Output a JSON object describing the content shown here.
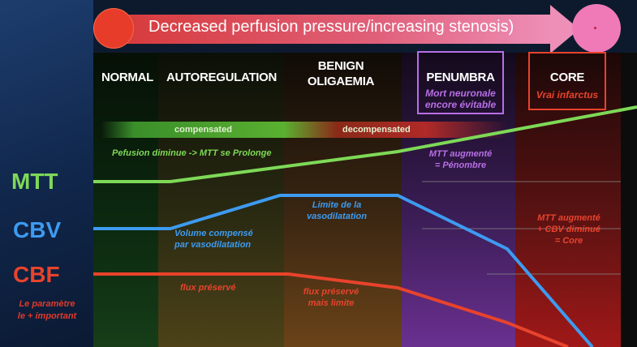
{
  "banner": {
    "text": "Decreased perfusion pressure/increasing stenosis)"
  },
  "stages": {
    "normal": "NORMAL",
    "autoregulation": "AUTOREGULATION",
    "benign_line1": "BENIGN",
    "benign_line2": "OLIGAEMIA",
    "penumbra": "PENUMBRA",
    "core": "CORE"
  },
  "boxes": {
    "penumbra_sub_line1": "Mort neuronale",
    "penumbra_sub_line2": "encore évitable",
    "core_sub": "Vrai infarctus"
  },
  "compensation": {
    "compensated": "compensated",
    "decompensated": "decompensated"
  },
  "legend": {
    "mtt": "MTT",
    "cbv": "CBV",
    "cbf": "CBF",
    "note_line1": "Le paramètre",
    "note_line2": "le + important"
  },
  "annotations": {
    "perfusion": "Pefusion diminue -> MTT se Prolonge",
    "mtt_pen_line1": "MTT augmenté",
    "mtt_pen_line2": "= Pénombre",
    "limit_line1": "Limite de la",
    "limit_line2": "vasodilatation",
    "volume_line1": "Volume compensé",
    "volume_line2": "par vasodilatation",
    "core_line1": "MTT augmenté",
    "core_line2": "+ CBV diminué",
    "core_line3": "= Core",
    "flux1": "flux préservé",
    "flux2_line1": "flux préservé",
    "flux2_line2": "mais limite"
  },
  "colors": {
    "mtt": "#7ed957",
    "cbv": "#3d9bf0",
    "cbf": "#e8432c",
    "penumbra": "#b86fe6",
    "core": "#e8432c"
  }
}
